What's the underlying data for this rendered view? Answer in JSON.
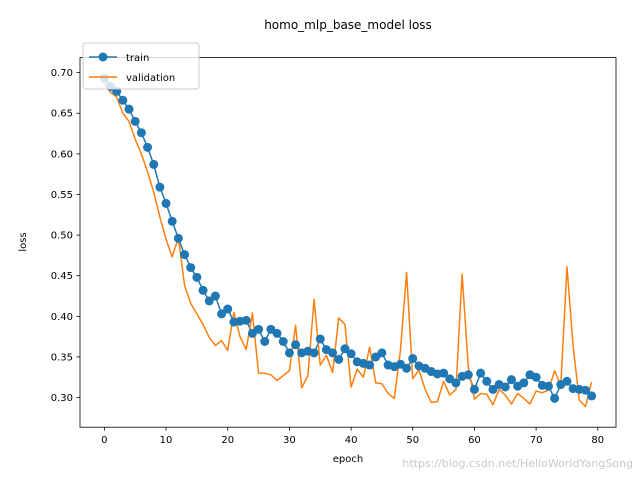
{
  "chart_data": {
    "type": "line",
    "title": "homo_mlp_base_model loss",
    "xlabel": "epoch",
    "ylabel": "loss",
    "xlim": [
      -3.95,
      82.95
    ],
    "ylim": [
      0.2635,
      0.7185
    ],
    "xticks": [
      0,
      10,
      20,
      30,
      40,
      50,
      60,
      70,
      80
    ],
    "yticks": [
      0.3,
      0.35,
      0.4,
      0.45,
      0.5,
      0.55,
      0.6,
      0.65,
      0.7
    ],
    "legend_position": "top-left",
    "series": [
      {
        "name": "train",
        "color": "#1f77b4",
        "marker": "circle",
        "x": [
          0,
          1,
          2,
          3,
          4,
          5,
          6,
          7,
          8,
          9,
          10,
          11,
          12,
          13,
          14,
          15,
          16,
          17,
          18,
          19,
          20,
          21,
          22,
          23,
          24,
          25,
          26,
          27,
          28,
          29,
          30,
          31,
          32,
          33,
          34,
          35,
          36,
          37,
          38,
          39,
          40,
          41,
          42,
          43,
          44,
          45,
          46,
          47,
          48,
          49,
          50,
          51,
          52,
          53,
          54,
          55,
          56,
          57,
          58,
          59,
          60,
          61,
          62,
          63,
          64,
          65,
          66,
          67,
          68,
          69,
          70,
          71,
          72,
          73,
          74,
          75,
          76,
          77,
          78,
          79
        ],
        "values": [
          0.693,
          0.683,
          0.677,
          0.666,
          0.655,
          0.64,
          0.626,
          0.608,
          0.587,
          0.559,
          0.539,
          0.517,
          0.496,
          0.476,
          0.46,
          0.448,
          0.432,
          0.419,
          0.425,
          0.403,
          0.409,
          0.393,
          0.394,
          0.395,
          0.379,
          0.384,
          0.369,
          0.384,
          0.379,
          0.369,
          0.355,
          0.365,
          0.355,
          0.357,
          0.355,
          0.372,
          0.359,
          0.355,
          0.347,
          0.36,
          0.354,
          0.344,
          0.342,
          0.34,
          0.35,
          0.355,
          0.34,
          0.338,
          0.341,
          0.336,
          0.348,
          0.339,
          0.336,
          0.332,
          0.329,
          0.33,
          0.323,
          0.318,
          0.326,
          0.328,
          0.31,
          0.33,
          0.32,
          0.31,
          0.316,
          0.313,
          0.322,
          0.314,
          0.318,
          0.328,
          0.325,
          0.315,
          0.314,
          0.299,
          0.316,
          0.32,
          0.311,
          0.31,
          0.309,
          0.302
        ]
      },
      {
        "name": "validation",
        "color": "#ff7f0e",
        "marker": "none",
        "x": [
          0,
          1,
          2,
          3,
          4,
          5,
          6,
          7,
          8,
          9,
          10,
          11,
          12,
          13,
          14,
          15,
          16,
          17,
          18,
          19,
          20,
          21,
          22,
          23,
          24,
          25,
          26,
          27,
          28,
          29,
          30,
          31,
          32,
          33,
          34,
          35,
          36,
          37,
          38,
          39,
          40,
          41,
          42,
          43,
          44,
          45,
          46,
          47,
          48,
          49,
          50,
          51,
          52,
          53,
          54,
          55,
          56,
          57,
          58,
          59,
          60,
          61,
          62,
          63,
          64,
          65,
          66,
          67,
          68,
          69,
          70,
          71,
          72,
          73,
          74,
          75,
          76,
          77,
          78,
          79
        ],
        "values": [
          0.686,
          0.676,
          0.67,
          0.65,
          0.64,
          0.618,
          0.6,
          0.578,
          0.553,
          0.522,
          0.495,
          0.473,
          0.497,
          0.438,
          0.416,
          0.403,
          0.39,
          0.374,
          0.364,
          0.37,
          0.358,
          0.405,
          0.375,
          0.359,
          0.404,
          0.33,
          0.33,
          0.328,
          0.321,
          0.327,
          0.333,
          0.389,
          0.312,
          0.327,
          0.421,
          0.34,
          0.352,
          0.331,
          0.398,
          0.39,
          0.313,
          0.335,
          0.325,
          0.362,
          0.318,
          0.317,
          0.305,
          0.299,
          0.358,
          0.454,
          0.323,
          0.334,
          0.31,
          0.294,
          0.295,
          0.32,
          0.303,
          0.31,
          0.452,
          0.338,
          0.298,
          0.305,
          0.304,
          0.291,
          0.31,
          0.303,
          0.292,
          0.305,
          0.299,
          0.292,
          0.308,
          0.306,
          0.309,
          0.333,
          0.315,
          0.461,
          0.363,
          0.297,
          0.289,
          0.319
        ]
      }
    ]
  },
  "legend": {
    "train_label": "train",
    "validation_label": "validation"
  },
  "watermark": "https://blog.csdn.net/HelloWorldYangSong"
}
